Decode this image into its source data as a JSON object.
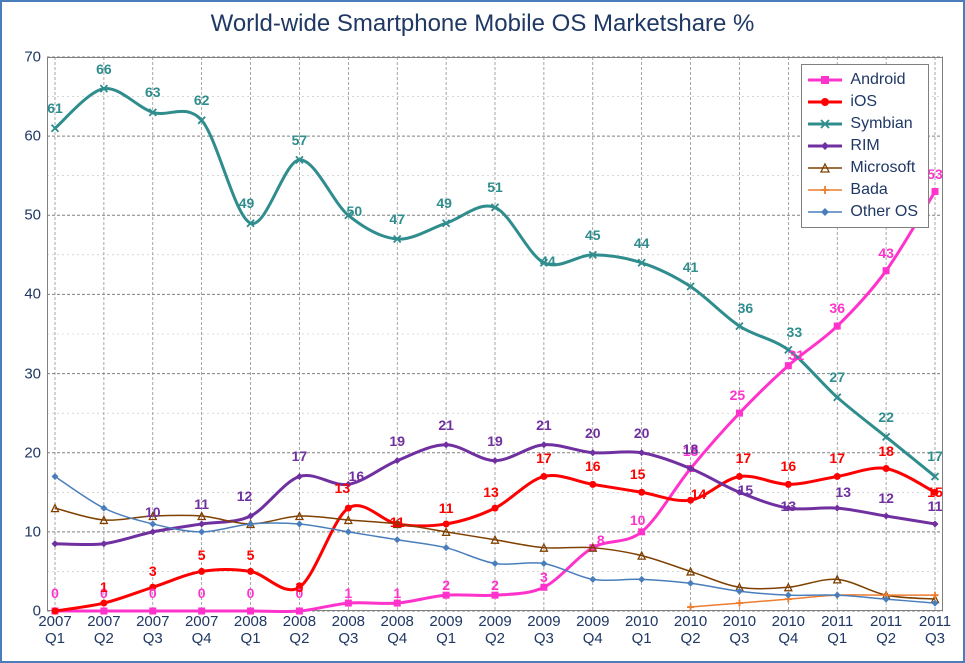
{
  "title": "World-wide Smartphone Mobile OS Marketshare %",
  "chart": {
    "type": "line",
    "categories": [
      "2007\nQ1",
      "2007\nQ2",
      "2007\nQ3",
      "2007\nQ4",
      "2008\nQ1",
      "2008\nQ2",
      "2008\nQ3",
      "2008\nQ4",
      "2009\nQ1",
      "2009\nQ2",
      "2009\nQ3",
      "2009\nQ4",
      "2010\nQ1",
      "2010\nQ2",
      "2010\nQ3",
      "2010\nQ4",
      "2011\nQ1",
      "2011\nQ2",
      "2011\nQ3"
    ],
    "ylim": [
      0,
      70
    ],
    "ytick_step": 10,
    "background_color": "#ffffff",
    "grid_color": "#808080",
    "minor_grid_color": "#bfbfbf",
    "title_color": "#1f3864",
    "axis_label_color": "#1f3864",
    "title_fontsize": 24,
    "axis_fontsize": 15,
    "datalabel_fontsize": 14,
    "smooth": true,
    "series": [
      {
        "name": "Android",
        "color": "#ff33cc",
        "marker": "square-filled",
        "line_width": 3,
        "values": [
          0,
          0,
          0,
          0,
          0,
          0,
          1,
          1,
          2,
          2,
          3,
          8,
          10,
          18,
          25,
          31,
          36,
          43,
          53
        ],
        "labels": [
          0,
          0,
          0,
          0,
          0,
          0,
          1,
          1,
          2,
          2,
          3,
          8,
          10,
          18,
          25,
          31,
          36,
          43,
          53
        ],
        "label_offsets": [
          null,
          null,
          null,
          null,
          null,
          null,
          [
            0,
            -2
          ],
          [
            0,
            -2
          ],
          [
            0,
            -2
          ],
          [
            0,
            -2
          ],
          [
            0,
            -2
          ],
          [
            8,
            0
          ],
          [
            -4,
            -4
          ],
          [
            0,
            -10
          ],
          [
            -2,
            -10
          ],
          [
            8,
            -3
          ],
          [
            0,
            -10
          ],
          [
            0,
            -10
          ],
          [
            0,
            -10
          ]
        ]
      },
      {
        "name": "iOS",
        "color": "#ff0000",
        "marker": "circle-filled",
        "line_width": 3,
        "values": [
          0,
          1,
          3,
          5,
          5,
          3,
          13,
          11,
          11,
          13,
          17,
          16,
          15,
          14,
          17,
          16,
          17,
          18,
          15
        ],
        "labels": [
          null,
          1,
          3,
          5,
          5,
          3,
          13,
          11,
          11,
          13,
          17,
          16,
          15,
          14,
          17,
          16,
          17,
          18,
          15
        ],
        "label_offsets": [
          null,
          [
            0,
            -8
          ],
          [
            0,
            -8
          ],
          [
            0,
            -8
          ],
          [
            0,
            -8
          ],
          [
            0,
            8
          ],
          [
            -6,
            -12
          ],
          [
            0,
            6
          ],
          [
            0,
            -8
          ],
          [
            -4,
            -8
          ],
          [
            0,
            -10
          ],
          [
            0,
            -10
          ],
          [
            -4,
            -10
          ],
          [
            8,
            2
          ],
          [
            4,
            -10
          ],
          [
            0,
            -10
          ],
          [
            0,
            -10
          ],
          [
            0,
            -10
          ],
          [
            0,
            8
          ]
        ]
      },
      {
        "name": "Symbian",
        "color": "#2f8d8d",
        "marker": "x",
        "line_width": 3,
        "values": [
          61,
          66,
          63,
          62,
          49,
          57,
          50,
          47,
          49,
          51,
          44,
          45,
          44,
          41,
          36,
          33,
          27,
          22,
          17
        ],
        "labels": [
          61,
          66,
          63,
          62,
          49,
          57,
          50,
          47,
          49,
          51,
          44,
          45,
          44,
          41,
          36,
          33,
          27,
          22,
          17
        ],
        "label_offsets": [
          [
            0,
            -12
          ],
          [
            0,
            -12
          ],
          [
            0,
            -12
          ],
          [
            0,
            -12
          ],
          [
            -4,
            -12
          ],
          [
            0,
            -12
          ],
          [
            6,
            4
          ],
          [
            0,
            -12
          ],
          [
            -2,
            -12
          ],
          [
            0,
            -12
          ],
          [
            4,
            6
          ],
          [
            0,
            -12
          ],
          [
            0,
            -12
          ],
          [
            0,
            -12
          ],
          [
            6,
            -10
          ],
          [
            6,
            -10
          ],
          [
            0,
            -12
          ],
          [
            0,
            -12
          ],
          [
            0,
            -12
          ]
        ]
      },
      {
        "name": "RIM",
        "color": "#7030a0",
        "marker": "diamond-filled",
        "line_width": 3,
        "values": [
          8.5,
          8.5,
          10,
          11,
          12,
          17,
          16,
          19,
          21,
          19,
          21,
          20,
          20,
          18,
          15,
          13,
          13,
          12,
          11
        ],
        "labels": [
          null,
          null,
          10,
          11,
          12,
          17,
          16,
          19,
          21,
          19,
          21,
          20,
          20,
          18,
          15,
          13,
          13,
          12,
          11
        ],
        "label_offsets": [
          null,
          null,
          [
            0,
            -12
          ],
          [
            0,
            -12
          ],
          [
            -6,
            -12
          ],
          [
            0,
            -12
          ],
          [
            8,
            0
          ],
          [
            0,
            -12
          ],
          [
            0,
            -12
          ],
          [
            0,
            -12
          ],
          [
            0,
            -12
          ],
          [
            0,
            -12
          ],
          [
            0,
            -12
          ],
          [
            0,
            -12
          ],
          [
            6,
            6
          ],
          [
            0,
            6
          ],
          [
            6,
            -8
          ],
          [
            0,
            -10
          ],
          [
            0,
            -10
          ]
        ]
      },
      {
        "name": "Microsoft",
        "color": "#7f4000",
        "marker": "triangle-open",
        "line_width": 1.5,
        "values": [
          13,
          11.5,
          12,
          12,
          11,
          12,
          11.5,
          11,
          10,
          9,
          8,
          8,
          7,
          5,
          3,
          3,
          4,
          2,
          1.5
        ],
        "labels": [
          null,
          null,
          null,
          null,
          null,
          null,
          null,
          null,
          null,
          null,
          null,
          null,
          null,
          null,
          null,
          null,
          null,
          null,
          null
        ]
      },
      {
        "name": "Bada",
        "color": "#ed7d31",
        "marker": "plus",
        "line_width": 1.5,
        "values": [
          null,
          null,
          null,
          null,
          null,
          null,
          null,
          null,
          null,
          null,
          null,
          null,
          null,
          0.5,
          1,
          1.5,
          2,
          2,
          2
        ],
        "labels": [
          null,
          null,
          null,
          null,
          null,
          null,
          null,
          null,
          null,
          null,
          null,
          null,
          null,
          null,
          null,
          null,
          null,
          null,
          null
        ]
      },
      {
        "name": "Other OS",
        "color": "#4a7ebb",
        "marker": "diamond-filled",
        "line_width": 1.5,
        "values": [
          17,
          13,
          11,
          10,
          11,
          11,
          10,
          9,
          8,
          6,
          6,
          4,
          4,
          3.5,
          2.5,
          2,
          2,
          1.5,
          1
        ],
        "labels": [
          null,
          null,
          null,
          null,
          null,
          null,
          null,
          null,
          null,
          null,
          null,
          null,
          null,
          null,
          null,
          null,
          null,
          null,
          null
        ]
      }
    ]
  }
}
